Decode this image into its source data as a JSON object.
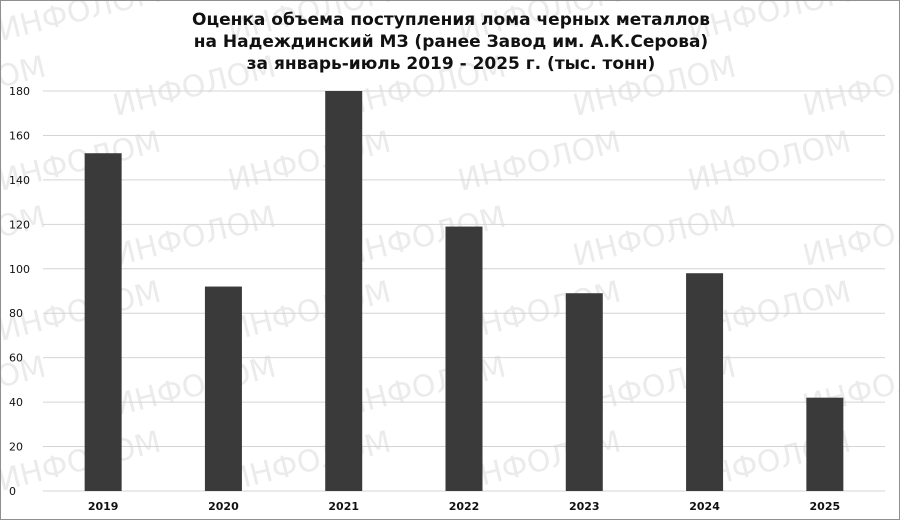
{
  "chart_data": {
    "type": "bar",
    "title_lines": [
      "Оценка объема поступления лома черных металлов",
      "на Надеждинский МЗ (ранее Завод им.  А.К.Серова)",
      "за январь-июль 2019 - 2025 г. (тыс. тонн)"
    ],
    "categories": [
      "2019",
      "2020",
      "2021",
      "2022",
      "2023",
      "2024",
      "2025"
    ],
    "values": [
      152,
      92,
      180,
      119,
      89,
      98,
      42
    ],
    "ylim": [
      0,
      180
    ],
    "yticks": [
      0,
      20,
      40,
      60,
      80,
      100,
      120,
      140,
      160,
      180
    ],
    "xlabel": "",
    "ylabel": "",
    "grid": true,
    "legend": "none",
    "bar_color": "#3a3a3a",
    "grid_color": "#d4d4d4"
  },
  "watermark": "ИНФОЛОМ"
}
